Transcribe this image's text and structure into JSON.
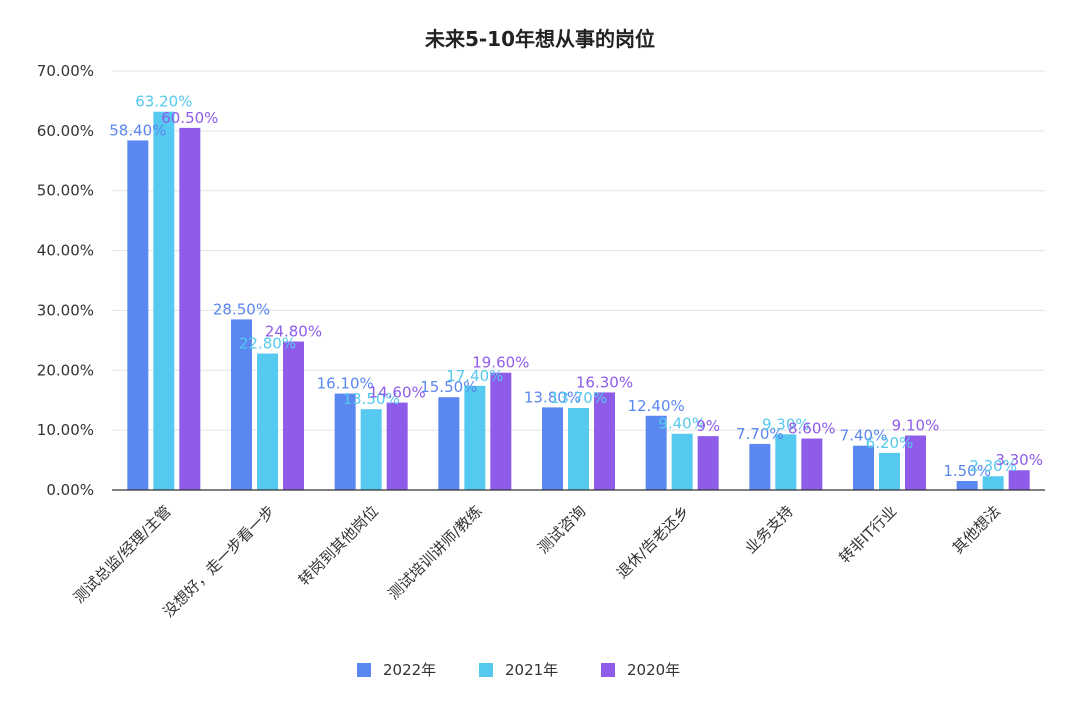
{
  "chart_data": {
    "type": "bar",
    "title": "未来5-10年想从事的岗位",
    "categories": [
      "测试总监/经理/主管",
      "没想好，走一步看一步",
      "转岗到其他岗位",
      "测试培训讲师/教练",
      "测试咨询",
      "退休/告老还乡",
      "业务支持",
      "转非IT行业",
      "其他想法"
    ],
    "series": [
      {
        "name": "2022年",
        "color": "#5b87f0",
        "label_color": "#5b87f0",
        "values": [
          58.4,
          28.5,
          16.1,
          15.5,
          13.8,
          12.4,
          7.7,
          7.4,
          1.5
        ],
        "labels": [
          "58.40%",
          "28.50%",
          "16.10%",
          "15.50%",
          "13.80%",
          "12.40%",
          "7.70%",
          "7.40%",
          "1.50%"
        ]
      },
      {
        "name": "2021年",
        "color": "#55c9ef",
        "label_color": "#55c9ef",
        "values": [
          63.2,
          22.8,
          13.5,
          17.4,
          13.7,
          9.4,
          9.3,
          6.2,
          2.3
        ],
        "labels": [
          "63.20%",
          "22.80%",
          "13.50%",
          "17.40%",
          "13.70%",
          "9.40%",
          "9.30%",
          "6.20%",
          "2.30%"
        ]
      },
      {
        "name": "2020年",
        "color": "#8f5cea",
        "label_color": "#8f5cea",
        "values": [
          60.5,
          24.8,
          14.6,
          19.6,
          16.3,
          9,
          8.6,
          9.1,
          3.3
        ],
        "labels": [
          "60.50%",
          "24.80%",
          "14.60%",
          "19.60%",
          "16.30%",
          "9%",
          "8.60%",
          "9.10%",
          "3.30%"
        ]
      }
    ],
    "ylim": [
      0,
      70
    ],
    "yticks": [
      "0.00%",
      "10.00%",
      "20.00%",
      "30.00%",
      "40.00%",
      "50.00%",
      "60.00%",
      "70.00%"
    ],
    "ytick_values": [
      0,
      10,
      20,
      30,
      40,
      50,
      60,
      70
    ],
    "xlabel": "",
    "ylabel": "",
    "grid": true,
    "legend_position": "bottom-center"
  }
}
